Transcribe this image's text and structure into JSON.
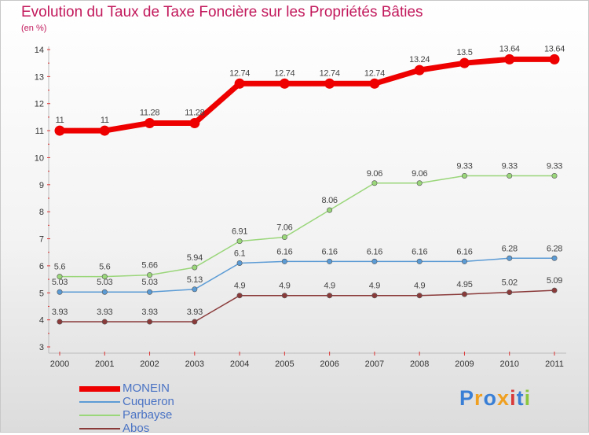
{
  "title": "Evolution du Taux de Taxe Foncière sur les Propriétés Bâties",
  "subtitle": "(en %)",
  "logo": {
    "letters": [
      "P",
      "r",
      "o",
      "x",
      "i",
      "t",
      "i"
    ],
    "colors": [
      "#3a7fd6",
      "#f0a020",
      "#3a7fd6",
      "#f0a020",
      "#d83a3a",
      "#3a7fd6",
      "#8cc63f"
    ]
  },
  "chart_data": {
    "type": "line",
    "title": "Evolution du Taux de Taxe Foncière sur les Propriétés Bâties",
    "ylabel": "(en %)",
    "xlabel": "",
    "x": [
      "2000",
      "2001",
      "2002",
      "2003",
      "2004",
      "2005",
      "2006",
      "2007",
      "2008",
      "2009",
      "2010",
      "2011"
    ],
    "ylim": [
      3,
      14
    ],
    "yticks": [
      "3",
      "4",
      "5",
      "6",
      "7",
      "8",
      "9",
      "10",
      "11",
      "12",
      "13",
      "14"
    ],
    "grid": false,
    "legend": "bottom-left",
    "series": [
      {
        "name": "MONEIN",
        "color": "#ee0000",
        "labels": [
          "11",
          "11",
          "11.28",
          "11.28",
          "12.74",
          "12.74",
          "12.74",
          "12.74",
          "13.24",
          "13.5",
          "13.64",
          "13.64"
        ],
        "values": [
          11,
          11,
          11.28,
          11.28,
          12.74,
          12.74,
          12.74,
          12.74,
          13.24,
          13.5,
          13.64,
          13.64
        ]
      },
      {
        "name": "Cuqueron",
        "color": "#5b9bd5",
        "labels": [
          "5.03",
          "5.03",
          "5.03",
          "5.13",
          "6.1",
          "6.16",
          "6.16",
          "6.16",
          "6.16",
          "6.16",
          "6.28",
          "6.28"
        ],
        "values": [
          5.03,
          5.03,
          5.03,
          5.13,
          6.1,
          6.16,
          6.16,
          6.16,
          6.16,
          6.16,
          6.28,
          6.28
        ]
      },
      {
        "name": "Parbayse",
        "color": "#9ad67a",
        "labels": [
          "5.6",
          "5.6",
          "5.66",
          "5.94",
          "6.91",
          "7.06",
          "8.06",
          "9.06",
          "9.06",
          "9.33",
          "9.33",
          "9.33"
        ],
        "values": [
          5.6,
          5.6,
          5.66,
          5.94,
          6.91,
          7.06,
          8.06,
          9.06,
          9.06,
          9.33,
          9.33,
          9.33
        ]
      },
      {
        "name": "Abos",
        "color": "#8b3a3a",
        "labels": [
          "3.93",
          "3.93",
          "3.93",
          "3.93",
          "4.9",
          "4.9",
          "4.9",
          "4.9",
          "4.9",
          "4.95",
          "5.02",
          "5.09"
        ],
        "values": [
          3.93,
          3.93,
          3.93,
          3.93,
          4.9,
          4.9,
          4.9,
          4.9,
          4.9,
          4.95,
          5.02,
          5.09
        ]
      }
    ]
  }
}
